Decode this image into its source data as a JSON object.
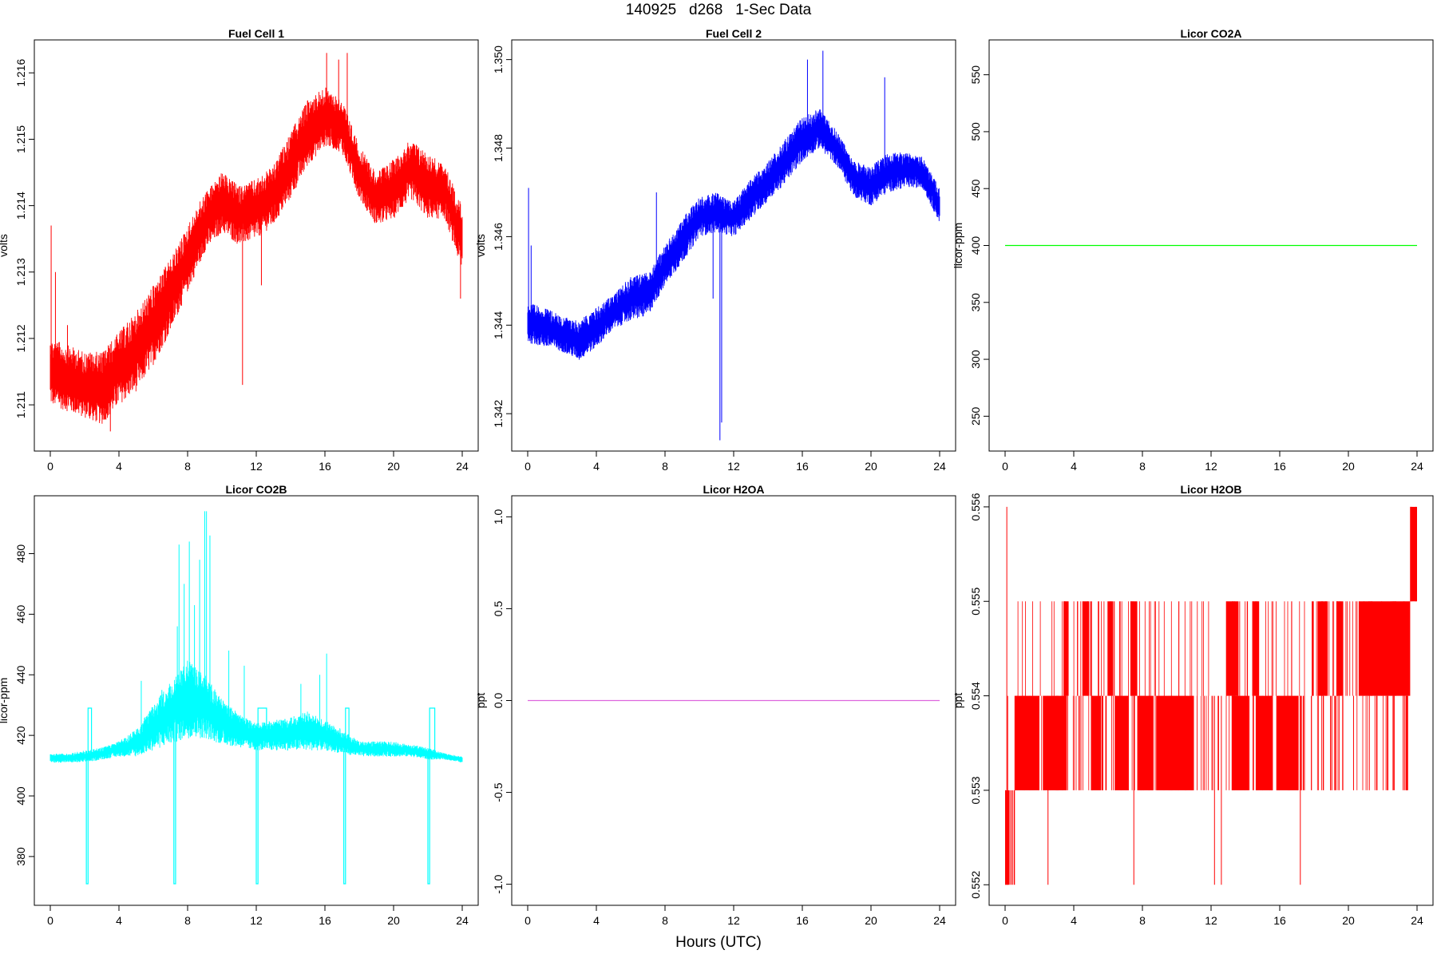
{
  "page": {
    "title": "140925   d268   1-Sec Data",
    "xlabel": "Hours (UTC)"
  },
  "chart_data": [
    {
      "id": "fc1",
      "type": "line",
      "title": "Fuel Cell 1",
      "ylabel": "volts",
      "color": "#ff0000",
      "xlim": [
        0,
        24
      ],
      "xticks": [
        0,
        4,
        8,
        12,
        16,
        20,
        24
      ],
      "ylim": [
        1.2104,
        1.2164
      ],
      "yticks": [
        1.211,
        1.212,
        1.213,
        1.214,
        1.215,
        1.216
      ],
      "ytick_labels": [
        "1.211",
        "1.212",
        "1.213",
        "1.214",
        "1.215",
        "1.216"
      ],
      "series": [
        {
          "x": [
            0,
            1,
            2,
            3,
            4,
            5,
            6,
            7,
            8,
            9,
            10,
            11,
            12,
            13,
            14,
            15,
            16,
            17,
            18,
            19,
            20,
            21,
            22,
            23,
            24
          ],
          "low": [
            1.211,
            1.2109,
            1.2108,
            1.2107,
            1.211,
            1.2112,
            1.2116,
            1.2121,
            1.2127,
            1.2133,
            1.2136,
            1.2134,
            1.2135,
            1.2137,
            1.2141,
            1.2146,
            1.2149,
            1.2148,
            1.2141,
            1.2137,
            1.2138,
            1.2141,
            1.2138,
            1.2138,
            1.213
          ],
          "high": [
            1.212,
            1.2119,
            1.2118,
            1.2118,
            1.2121,
            1.2124,
            1.2128,
            1.2132,
            1.2137,
            1.2142,
            1.2145,
            1.2143,
            1.2144,
            1.2146,
            1.2151,
            1.2156,
            1.2158,
            1.2156,
            1.2149,
            1.2145,
            1.2147,
            1.215,
            1.2148,
            1.2146,
            1.214
          ],
          "spikes": [
            [
              0.05,
              1.2137
            ],
            [
              0.3,
              1.213
            ],
            [
              1.0,
              1.2122
            ],
            [
              3.5,
              1.2106
            ],
            [
              11.2,
              1.2113
            ],
            [
              12.3,
              1.2128
            ],
            [
              16.1,
              1.2163
            ],
            [
              16.8,
              1.2162
            ],
            [
              17.3,
              1.2163
            ],
            [
              23.9,
              1.2126
            ]
          ]
        }
      ]
    },
    {
      "id": "fc2",
      "type": "line",
      "title": "Fuel Cell 2",
      "ylabel": "volts",
      "color": "#0000ff",
      "xlim": [
        0,
        24
      ],
      "xticks": [
        0,
        4,
        8,
        12,
        16,
        20,
        24
      ],
      "ylim": [
        1.3413,
        1.3503
      ],
      "yticks": [
        1.342,
        1.344,
        1.346,
        1.348,
        1.35
      ],
      "ytick_labels": [
        "1.342",
        "1.344",
        "1.346",
        "1.348",
        "1.350"
      ],
      "series": [
        {
          "x": [
            0,
            1,
            2,
            3,
            4,
            5,
            6,
            7,
            8,
            9,
            10,
            11,
            12,
            13,
            14,
            15,
            16,
            17,
            18,
            19,
            20,
            21,
            22,
            23,
            24
          ],
          "low": [
            1.3436,
            1.3435,
            1.3434,
            1.3432,
            1.3435,
            1.3439,
            1.3441,
            1.3442,
            1.3449,
            1.3454,
            1.346,
            1.3461,
            1.346,
            1.3464,
            1.3468,
            1.3472,
            1.3477,
            1.348,
            1.3476,
            1.3469,
            1.3467,
            1.347,
            1.3471,
            1.3471,
            1.3463
          ],
          "high": [
            1.3445,
            1.3444,
            1.3442,
            1.3441,
            1.3444,
            1.3447,
            1.3451,
            1.3452,
            1.3458,
            1.3464,
            1.3469,
            1.347,
            1.3468,
            1.3473,
            1.3477,
            1.3482,
            1.3487,
            1.3489,
            1.3484,
            1.3477,
            1.3476,
            1.3479,
            1.3479,
            1.3478,
            1.3471
          ],
          "spikes": [
            [
              0.05,
              1.3471
            ],
            [
              0.2,
              1.3458
            ],
            [
              7.5,
              1.347
            ],
            [
              10.8,
              1.3446
            ],
            [
              11.2,
              1.3414
            ],
            [
              11.3,
              1.3418
            ],
            [
              16.3,
              1.35
            ],
            [
              17.2,
              1.3502
            ],
            [
              20.8,
              1.3496
            ]
          ]
        }
      ]
    },
    {
      "id": "co2a",
      "type": "line",
      "title": "Licor CO2A",
      "ylabel": "licor-ppm",
      "color": "#00ff00",
      "xlim": [
        0,
        24
      ],
      "xticks": [
        0,
        4,
        8,
        12,
        16,
        20,
        24
      ],
      "ylim": [
        225,
        575
      ],
      "yticks": [
        250,
        300,
        350,
        400,
        450,
        500,
        550
      ],
      "ytick_labels": [
        "250",
        "300",
        "350",
        "400",
        "450",
        "500",
        "550"
      ],
      "series": [
        {
          "x": [
            0,
            24
          ],
          "y": [
            400,
            400
          ]
        }
      ]
    },
    {
      "id": "co2b",
      "type": "line",
      "title": "Licor CO2B",
      "ylabel": "licor-ppm",
      "color": "#00ffff",
      "xlim": [
        0,
        24
      ],
      "xticks": [
        0,
        4,
        8,
        12,
        16,
        20,
        24
      ],
      "ylim": [
        366,
        497
      ],
      "yticks": [
        380,
        400,
        420,
        440,
        460,
        480
      ],
      "ytick_labels": [
        "380",
        "400",
        "420",
        "440",
        "460",
        "480"
      ],
      "series": [
        {
          "x": [
            0,
            1,
            2,
            3,
            4,
            5,
            6,
            7,
            8,
            9,
            10,
            11,
            12,
            13,
            14,
            15,
            16,
            17,
            18,
            19,
            20,
            21,
            22,
            23,
            24
          ],
          "low": [
            411,
            411,
            411,
            412,
            413,
            413,
            415,
            417,
            419,
            419,
            417,
            416,
            415,
            415,
            415,
            415,
            415,
            414,
            413,
            413,
            413,
            413,
            412,
            412,
            411
          ],
          "high": [
            414,
            414,
            415,
            416,
            418,
            422,
            430,
            438,
            445,
            440,
            432,
            427,
            424,
            425,
            426,
            428,
            425,
            422,
            418,
            418,
            418,
            417,
            416,
            414,
            413
          ],
          "spikes": [
            [
              5.3,
              438
            ],
            [
              6.5,
              435
            ],
            [
              7.4,
              456
            ],
            [
              7.5,
              483
            ],
            [
              7.8,
              470
            ],
            [
              8.1,
              484
            ],
            [
              8.4,
              463
            ],
            [
              8.7,
              478
            ],
            [
              9.0,
              494
            ],
            [
              9.1,
              494
            ],
            [
              9.3,
              486
            ],
            [
              10.4,
              448
            ],
            [
              11.3,
              443
            ],
            [
              12.6,
              429
            ],
            [
              14.6,
              437
            ],
            [
              15.7,
              440
            ],
            [
              16.1,
              447
            ]
          ],
          "cal_dips": [
            [
              2.1,
              2.2,
              2.3,
              2.4
            ],
            [
              7.2,
              7.3,
              7.4,
              7.5
            ],
            [
              12.0,
              12.1,
              12.2,
              12.6
            ],
            [
              17.1,
              17.2,
              17.3,
              17.4
            ],
            [
              22.0,
              22.1,
              22.2,
              22.4
            ]
          ],
          "cal_low": 371,
          "cal_high": 429
        }
      ]
    },
    {
      "id": "h2oa",
      "type": "line",
      "title": "Licor H2OA",
      "ylabel": "ppt",
      "color": "#dd66dd",
      "xlim": [
        0,
        24
      ],
      "xticks": [
        0,
        4,
        8,
        12,
        16,
        20,
        24
      ],
      "ylim": [
        -1.08,
        1.08
      ],
      "yticks": [
        -1.0,
        -0.5,
        0.0,
        0.5,
        1.0
      ],
      "ytick_labels": [
        "-1.0",
        "-0.5",
        "0.0",
        "0.5",
        "1.0"
      ],
      "series": [
        {
          "x": [
            0,
            24
          ],
          "y": [
            0,
            0
          ]
        }
      ]
    },
    {
      "id": "h2ob",
      "type": "line",
      "title": "Licor H2OB",
      "ylabel": "ppt",
      "color": "#ff0000",
      "xlim": [
        0,
        24
      ],
      "xticks": [
        0,
        4,
        8,
        12,
        16,
        20,
        24
      ],
      "ylim": [
        0.55185,
        0.55605
      ],
      "yticks": [
        0.552,
        0.553,
        0.554,
        0.555,
        0.556
      ],
      "ytick_labels": [
        "0.552",
        "0.553",
        "0.554",
        "0.555",
        "0.556"
      ],
      "series": [
        {
          "step_levels": [
            0.552,
            0.553,
            0.554,
            0.555,
            0.556
          ],
          "filled_bands": [
            [
              0.0,
              0.25,
              0.552,
              0.553
            ],
            [
              0.55,
              2.0,
              0.553,
              0.554
            ],
            [
              2.2,
              3.1,
              0.553,
              0.554
            ],
            [
              3.4,
              3.7,
              0.554,
              0.555
            ],
            [
              3.0,
              3.6,
              0.553,
              0.554
            ],
            [
              4.5,
              4.9,
              0.554,
              0.555
            ],
            [
              5.0,
              5.6,
              0.553,
              0.554
            ],
            [
              6.0,
              6.3,
              0.554,
              0.555
            ],
            [
              6.4,
              7.2,
              0.553,
              0.554
            ],
            [
              7.3,
              7.7,
              0.554,
              0.555
            ],
            [
              7.7,
              8.6,
              0.553,
              0.554
            ],
            [
              8.8,
              11.0,
              0.553,
              0.554
            ],
            [
              12.9,
              13.6,
              0.554,
              0.555
            ],
            [
              13.2,
              14.2,
              0.553,
              0.554
            ],
            [
              14.4,
              14.8,
              0.554,
              0.555
            ],
            [
              14.6,
              15.6,
              0.553,
              0.554
            ],
            [
              15.8,
              16.6,
              0.553,
              0.554
            ],
            [
              16.5,
              17.1,
              0.553,
              0.554
            ],
            [
              18.2,
              18.8,
              0.554,
              0.555
            ],
            [
              19.3,
              19.7,
              0.554,
              0.555
            ],
            [
              20.6,
              23.6,
              0.554,
              0.555
            ],
            [
              23.6,
              24.0,
              0.555,
              0.556
            ]
          ],
          "spikes": [
            [
              0.1,
              0.556
            ],
            [
              0.15,
              0.552
            ],
            [
              2.5,
              0.552
            ],
            [
              7.5,
              0.552
            ],
            [
              12.2,
              0.552
            ],
            [
              12.6,
              0.552
            ],
            [
              17.2,
              0.552
            ],
            [
              20.3,
              0.553
            ],
            [
              22.6,
              0.553
            ]
          ]
        }
      ]
    }
  ]
}
